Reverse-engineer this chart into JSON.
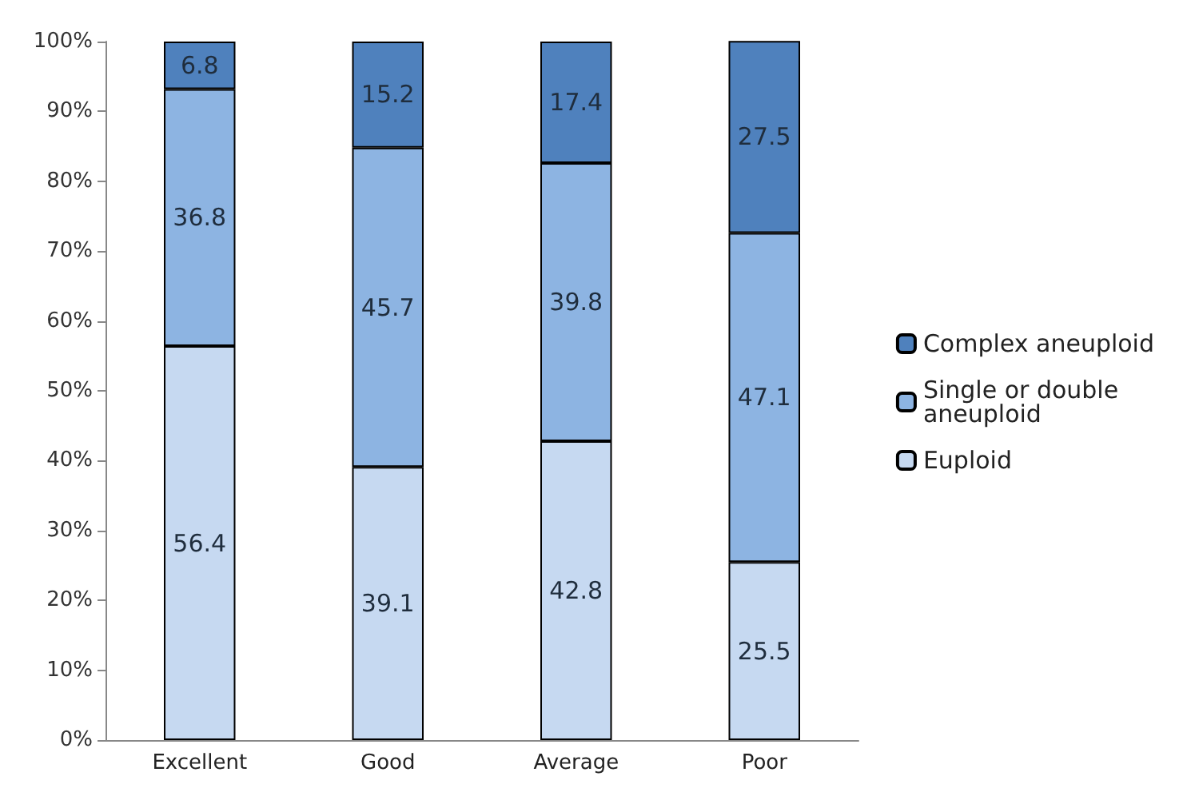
{
  "chart_data": {
    "type": "bar",
    "stacked": true,
    "categories": [
      "Excellent",
      "Good",
      "Average",
      "Poor"
    ],
    "series": [
      {
        "name": "Euploid",
        "color": "#c6d9f1",
        "values": [
          56.4,
          39.1,
          42.8,
          25.5
        ]
      },
      {
        "name": "Single or double aneuploid",
        "color": "#8db4e2",
        "values": [
          36.8,
          45.7,
          39.8,
          47.1
        ]
      },
      {
        "name": "Complex aneuploid",
        "color": "#4f81bd",
        "values": [
          6.8,
          15.2,
          17.4,
          27.5
        ]
      }
    ],
    "ylim": [
      0,
      100
    ],
    "yticks": [
      {
        "value": 0,
        "label": "0%"
      },
      {
        "value": 10,
        "label": "10%"
      },
      {
        "value": 20,
        "label": "20%"
      },
      {
        "value": 30,
        "label": "30%"
      },
      {
        "value": 40,
        "label": "40%"
      },
      {
        "value": 50,
        "label": "50%"
      },
      {
        "value": 60,
        "label": "60%"
      },
      {
        "value": 70,
        "label": "70%"
      },
      {
        "value": 80,
        "label": "80%"
      },
      {
        "value": 90,
        "label": "90%"
      },
      {
        "value": 100,
        "label": "100%"
      }
    ],
    "grid": false,
    "legend": "right",
    "data_labels": true
  }
}
